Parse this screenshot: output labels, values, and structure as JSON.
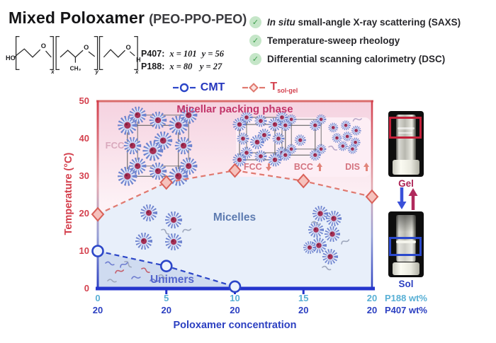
{
  "header": {
    "title_main": "Mixed Poloxamer",
    "title_sub": "(PEO-PPO-PEO)",
    "polymers": [
      {
        "name": "P407:",
        "x_val": "x = 101",
        "y_val": "y = 56"
      },
      {
        "name": "P188:",
        "x_val": "x = 80",
        "y_val": "y = 27"
      }
    ],
    "structure_atoms": {
      "left_end": "HO",
      "o1": "O",
      "methyl": "CH₃",
      "o2": "O",
      "o3": "O",
      "right_end": "H",
      "sub1": "x",
      "sub2": "y",
      "sub3": "x"
    }
  },
  "checklist": [
    {
      "check": "✓",
      "prefix_italic": "In situ",
      "label": " small-angle X-ray scattering (SAXS)"
    },
    {
      "check": "✓",
      "prefix_italic": "",
      "label": "Temperature-sweep rheology"
    },
    {
      "check": "✓",
      "prefix_italic": "",
      "label": "Differential scanning calorimetry (DSC)"
    }
  ],
  "legend": {
    "cmt_label": "CMT",
    "tsolgel_main": "T",
    "tsolgel_sub": "sol-gel"
  },
  "chart_data": {
    "type": "line",
    "title": "",
    "xlabel": "Poloxamer concentration",
    "ylabel": "Temperature (°C)",
    "xlim": [
      0,
      20
    ],
    "ylim": [
      0,
      50
    ],
    "yticks": [
      0,
      10,
      20,
      30,
      40,
      50
    ],
    "xticks_p188": [
      0,
      5,
      10,
      15,
      20
    ],
    "xticks_p407": [
      20,
      20,
      20,
      20,
      20
    ],
    "xrow_labels": {
      "p188": "P188 wt%",
      "p407": "P407 wt%"
    },
    "grid": false,
    "legend_position": "top-center",
    "series": [
      {
        "name": "CMT",
        "marker": "circle",
        "line": "dashed",
        "color": "#2c46c8",
        "x": [
          0,
          5,
          10
        ],
        "y": [
          10,
          6,
          0.5
        ]
      },
      {
        "name": "T sol-gel",
        "marker": "diamond",
        "line": "dashed",
        "color": "#e0796f",
        "x": [
          0,
          5,
          10,
          15,
          20
        ],
        "y": [
          19.8,
          28.3,
          31.5,
          28.7,
          24.5
        ]
      }
    ],
    "phase_labels": {
      "packing": "Micellar packing phase",
      "micelles": "Micelles",
      "unimers": "Unimers",
      "fcc_region": "FCC",
      "structures": [
        {
          "label": "FCC",
          "trend": "down"
        },
        {
          "label": "BCC",
          "trend": "up"
        },
        {
          "label": "DIS",
          "trend": "up"
        }
      ]
    },
    "colors": {
      "axis_red": "#d4414e",
      "axis_blue": "#2435cd",
      "top_border": "#d96c6c",
      "pink_top": "#f5d2e0",
      "pink_bottom": "#fdf2f6",
      "subbox": "#fdeef5",
      "micelles_bg": "#e8effa",
      "unimers_bg": "#cfdbf0",
      "diamond_fill": "#f5c2bd",
      "diamond_stroke": "#d96159",
      "circle_fill": "#eef3fb",
      "circle_stroke": "#2c46c8"
    }
  },
  "samples": {
    "gel_label": "Gel",
    "sol_label": "Sol"
  }
}
